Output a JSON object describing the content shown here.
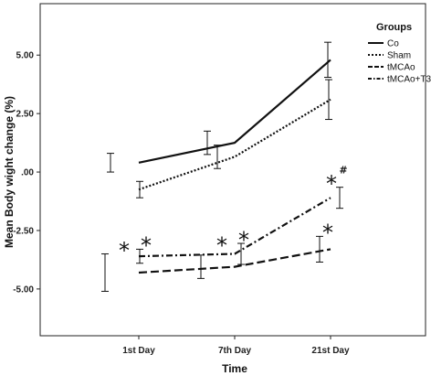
{
  "chart_data": {
    "type": "line",
    "title": "",
    "xlabel": "Time",
    "ylabel": "Mean Body wight change (%)",
    "categories": [
      "1st Day",
      "7th Day",
      "21st Day"
    ],
    "ylim": [
      -7.0,
      7.2
    ],
    "yticks": [
      5.0,
      2.5,
      0.0,
      -2.5,
      -5.0
    ],
    "ytick_labels": [
      "5.00",
      "2.50",
      ".00",
      "-2.50",
      "-5.00"
    ],
    "grid": false,
    "legend": {
      "title": "Groups",
      "position": "top-right"
    },
    "series": [
      {
        "name": "Co",
        "style": "solid",
        "values": [
          0.4,
          1.25,
          4.8
        ],
        "error": [
          0.4,
          0.5,
          0.75
        ]
      },
      {
        "name": "Sham",
        "style": "dotted",
        "values": [
          -0.75,
          0.65,
          3.1
        ],
        "error": [
          0.35,
          0.5,
          0.85
        ]
      },
      {
        "name": "tMCAo",
        "style": "dashed",
        "values": [
          -4.3,
          -4.05,
          -3.3
        ],
        "error": [
          0.8,
          0.5,
          0.55
        ]
      },
      {
        "name": "tMCAo+T3",
        "style": "dashdot",
        "values": [
          -3.6,
          -3.5,
          -1.1
        ],
        "error": [
          0.3,
          0.45,
          0.45
        ]
      }
    ],
    "annotations": [
      {
        "text": "*",
        "category": 0,
        "y": -3.2,
        "offset": -16
      },
      {
        "text": "*",
        "category": 0,
        "y": -3.0,
        "offset": 8
      },
      {
        "text": "*",
        "category": 1,
        "y": -3.0,
        "offset": -14
      },
      {
        "text": "*",
        "category": 1,
        "y": -2.75,
        "offset": 10
      },
      {
        "text": "*",
        "category": 2,
        "y": -2.45,
        "offset": -3
      },
      {
        "text": "*",
        "category": 2,
        "y": -0.35,
        "offset": 1
      },
      {
        "text": "#",
        "category": 2,
        "y": -0.05,
        "offset": 14,
        "kind": "hash"
      }
    ]
  },
  "colors": {
    "line": "#111111",
    "background": "#ffffff"
  }
}
